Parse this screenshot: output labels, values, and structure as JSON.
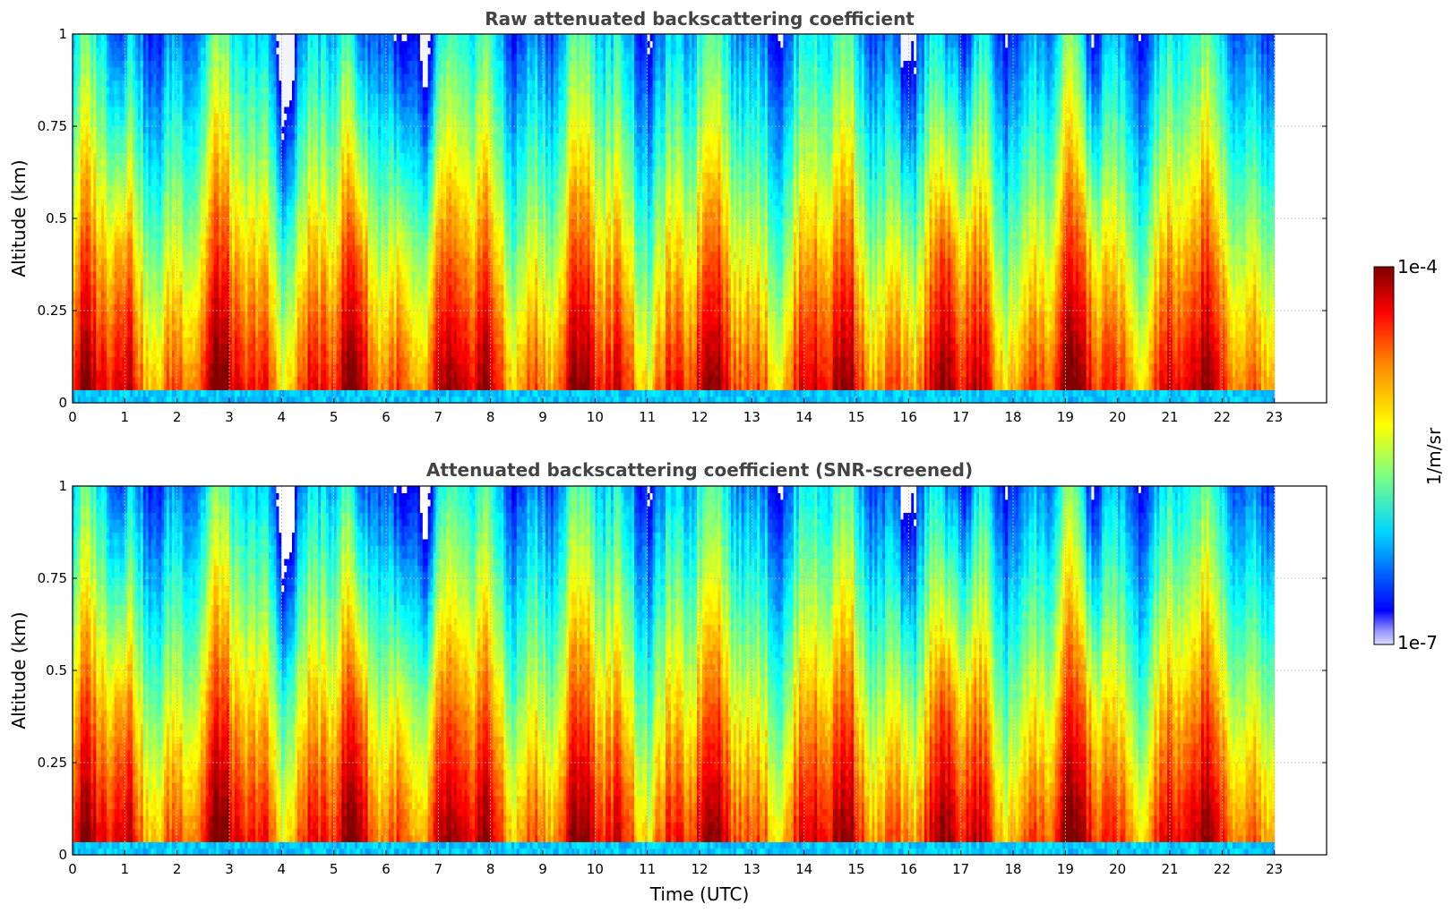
{
  "chart_data": [
    {
      "type": "heatmap",
      "title": "Raw attenuated backscattering coefficient",
      "xlabel": "",
      "ylabel": "Altitude (km)",
      "xlim": [
        0,
        24
      ],
      "ylim": [
        0,
        1
      ],
      "x_ticks": [
        "0",
        "1",
        "2",
        "3",
        "4",
        "5",
        "6",
        "7",
        "8",
        "9",
        "10",
        "11",
        "12",
        "13",
        "14",
        "15",
        "16",
        "17",
        "18",
        "19",
        "20",
        "21",
        "22",
        "23"
      ],
      "y_ticks": [
        "0",
        "0.25",
        "0.5",
        "0.75",
        "1"
      ],
      "data_end_hour": 23,
      "grid": true,
      "colorscale": "jet",
      "variant": "raw"
    },
    {
      "type": "heatmap",
      "title": "Attenuated backscattering coefficient (SNR-screened)",
      "xlabel": "Time (UTC)",
      "ylabel": "Altitude (km)",
      "xlim": [
        0,
        24
      ],
      "ylim": [
        0,
        1
      ],
      "x_ticks": [
        "0",
        "1",
        "2",
        "3",
        "4",
        "5",
        "6",
        "7",
        "8",
        "9",
        "10",
        "11",
        "12",
        "13",
        "14",
        "15",
        "16",
        "17",
        "18",
        "19",
        "20",
        "21",
        "22",
        "23"
      ],
      "y_ticks": [
        "0",
        "0.25",
        "0.5",
        "0.75",
        "1"
      ],
      "data_end_hour": 23,
      "grid": true,
      "colorscale": "jet",
      "variant": "screened"
    }
  ],
  "colorbar": {
    "max_label": "1e-4",
    "min_label": "1e-7",
    "unit_label": "1/m/sr",
    "scale": "log",
    "range": [
      1e-07,
      0.0001
    ]
  }
}
